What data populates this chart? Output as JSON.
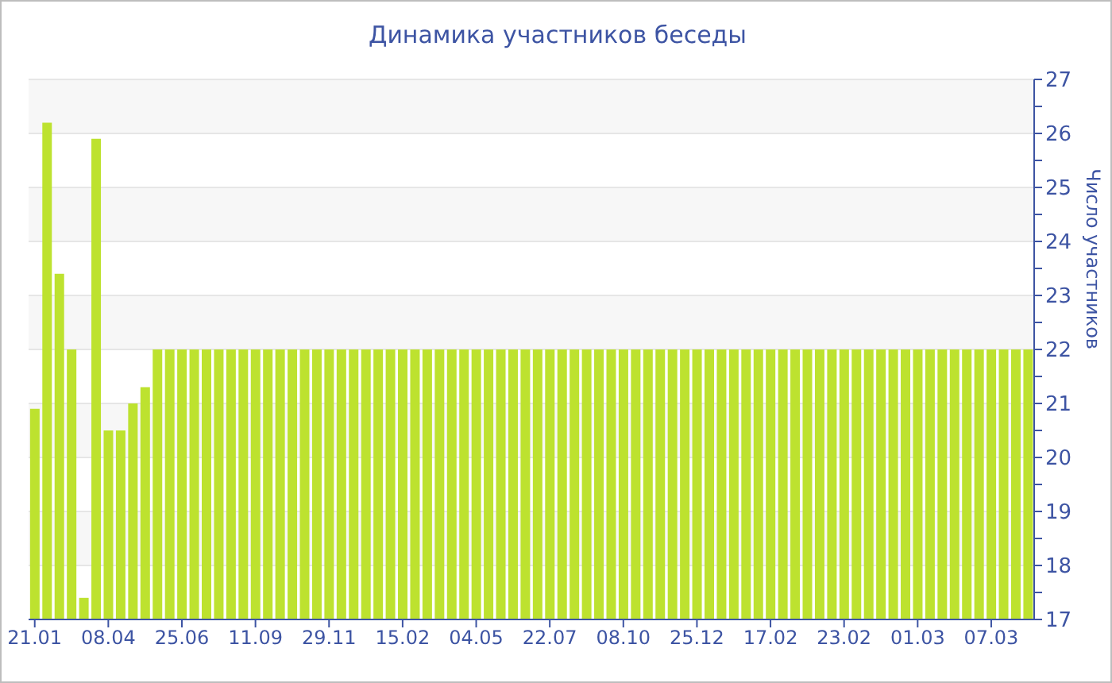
{
  "chart_data": {
    "type": "bar",
    "title": "Динамика участников беседы",
    "ylabel": "Число участников",
    "categories": [
      "21.01",
      null,
      null,
      null,
      null,
      null,
      "08.04",
      null,
      null,
      null,
      null,
      null,
      "25.06",
      null,
      null,
      null,
      null,
      null,
      "11.09",
      null,
      null,
      null,
      null,
      null,
      "29.11",
      null,
      null,
      null,
      null,
      null,
      "15.02",
      null,
      null,
      null,
      null,
      null,
      "04.05",
      null,
      null,
      null,
      null,
      null,
      "22.07",
      null,
      null,
      null,
      null,
      null,
      "08.10",
      null,
      null,
      null,
      null,
      null,
      "25.12",
      null,
      null,
      null,
      null,
      null,
      "17.02",
      null,
      null,
      null,
      null,
      null,
      "23.02",
      null,
      null,
      null,
      null,
      null,
      "01.03",
      null,
      null,
      null,
      null,
      null,
      "07.03",
      null,
      null,
      null
    ],
    "values": [
      20.9,
      26.2,
      23.4,
      22,
      17.4,
      25.9,
      20.5,
      20.5,
      21,
      21.3,
      22,
      22,
      22,
      22,
      22,
      22,
      22,
      22,
      22,
      22,
      22,
      22,
      22,
      22,
      22,
      22,
      22,
      22,
      22,
      22,
      22,
      22,
      22,
      22,
      22,
      22,
      22,
      22,
      22,
      22,
      22,
      22,
      22,
      22,
      22,
      22,
      22,
      22,
      22,
      22,
      22,
      22,
      22,
      22,
      22,
      22,
      22,
      22,
      22,
      22,
      22,
      22,
      22,
      22,
      22,
      22,
      22,
      22,
      22,
      22,
      22,
      22,
      22,
      22,
      22,
      22,
      22,
      22,
      22,
      22,
      22,
      22
    ],
    "color": "#bde22f",
    "ylim": [
      17,
      27
    ],
    "yticks": [
      17,
      {
        "value": 17.5,
        "label": null
      },
      18,
      {
        "value": 18.5,
        "label": null
      },
      19,
      {
        "value": 19.5,
        "label": null
      },
      20,
      {
        "value": 20.5,
        "label": null
      },
      21,
      {
        "value": 21.5,
        "label": null
      },
      22,
      {
        "value": 22.5,
        "label": null
      },
      23,
      {
        "value": 23.5,
        "label": null
      },
      24,
      {
        "value": 24.5,
        "label": null
      },
      25,
      {
        "value": 25.5,
        "label": null
      },
      26,
      {
        "value": 26.5,
        "label": null
      },
      27
    ],
    "grid": "y"
  }
}
